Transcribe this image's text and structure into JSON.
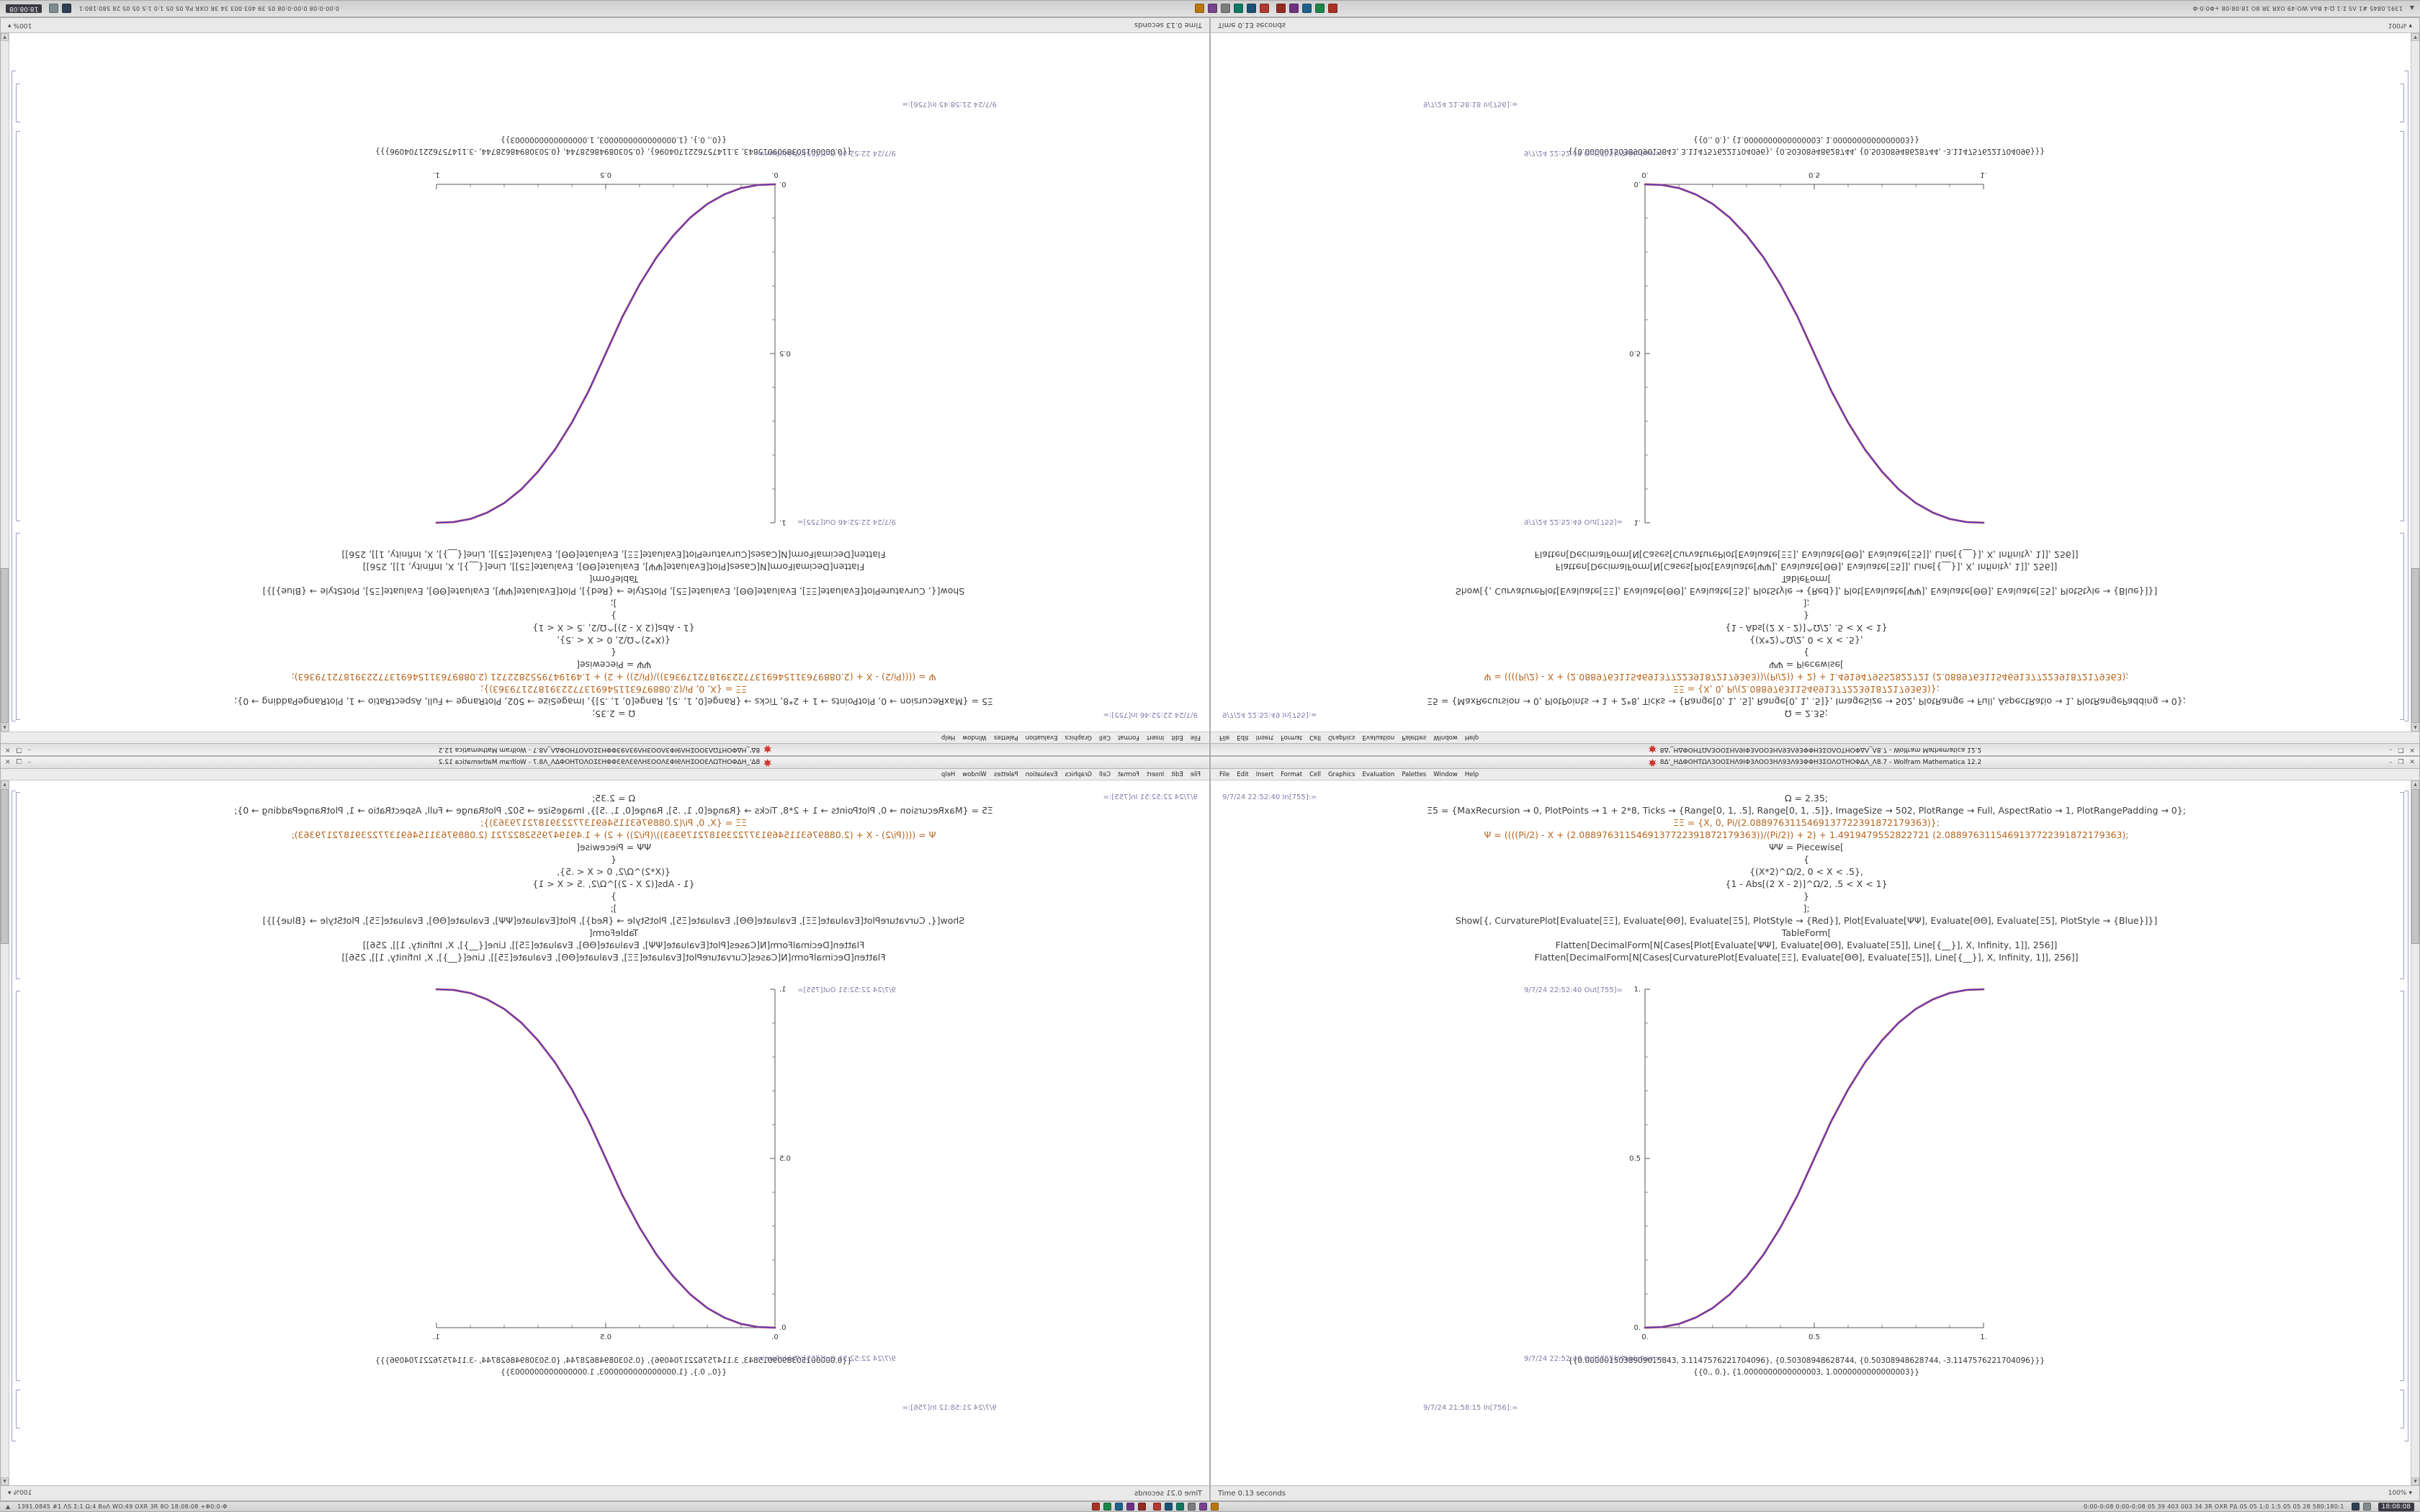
{
  "taskbar": {
    "autohide_arrow": "▲",
    "left_text": "1391.0845 #1 ΛS Σ:1 Ω:4 ΒοΛ WO:49 ΟΧR 3R 8Ο 18:08:08 +Φ0:0-Φ",
    "right_text": "0:00-0:08 0:00-0:08 05 39 403 003 34 3R ΟΧR ΡΔ 0S 05 1:0 1:5 05 05 28 580:180:1",
    "clock": "18:08:08",
    "app_icons_group1": [
      {
        "name": "terminal-icon",
        "color": "#a93226"
      },
      {
        "name": "files-icon",
        "color": "#1e8449"
      },
      {
        "name": "editor-icon",
        "color": "#1f618d"
      },
      {
        "name": "chat-icon",
        "color": "#6c3483"
      },
      {
        "name": "media-icon",
        "color": "#922b21"
      }
    ],
    "app_icons_group2": [
      {
        "name": "browser-icon",
        "color": "#b03a2e"
      },
      {
        "name": "mail-icon",
        "color": "#1a5276"
      },
      {
        "name": "calculator-icon",
        "color": "#117864"
      },
      {
        "name": "settings-icon",
        "color": "#7b7d7d"
      },
      {
        "name": "music-icon",
        "color": "#76448a"
      },
      {
        "name": "code-icon",
        "color": "#b9770e"
      }
    ],
    "right_icons": [
      {
        "name": "network-icon",
        "color": "#2e4053"
      },
      {
        "name": "volume-icon",
        "color": "#7f8c8d"
      }
    ]
  },
  "window_chrome": {
    "title": "8Δ'_ΗΔΦΟΗΤΩΛ3ΟΟΣΗΛ9ΙΦ3ΛΟΟ3ΗΛ93Λ93ΦΦΗ3ΣΟΛΟΤΗΟΦΔΛ_Λ8.7 - Wolfram Mathematica 12.2",
    "menu": [
      "File",
      "Edit",
      "Insert",
      "Format",
      "Cell",
      "Graphics",
      "Evaluation",
      "Palettes",
      "Window",
      "Help"
    ],
    "buttons": [
      "–",
      "❒",
      "✕"
    ],
    "zoom": "100%",
    "spikey_color": "#d0342c"
  },
  "notebook": {
    "in_label_prefix": "In[755]:=",
    "out_label_suffix": "Out[755]=",
    "tableform_suffix": "Out[755]//TableForm=",
    "next_label_suffix": "In[756]:=",
    "code_lines": [
      "Ω = 2.35;",
      "Ξ5 = {MaxRecursion → 0, PlotPoints → 1 + 2*8, Ticks → {Range[0, 1, .5], Range[0, 1, .5]}, ImageSize → 502, PlotRange → Full, AspectRatio → 1, PlotRangePadding → 0};",
      "ΞΞ = {X, 0, Pi/(2.0889763115469137722391872179363)};",
      "Ψ = ((((Pi/2) - X + (2.0889763115469137722391872179363))/(Pi/2)) + 2) + 1.4919479552822721 (2.0889763115469137722391872179363);",
      "ΨΨ = Piecewise[",
      "{",
      "{(X*2)^Ω/2, 0 < X < .5},",
      "{1 - Abs[(2 X - 2)]^Ω/2, .5 < X < 1}",
      "}",
      "];",
      "Show[{, CurvaturePlot[Evaluate[ΞΞ], Evaluate[ΘΘ], Evaluate[Ξ5], PlotStyle → {Red}],  Plot[Evaluate[ΨΨ], Evaluate[ΘΘ], Evaluate[Ξ5], PlotStyle → {Blue}]}]",
      "TableForm[",
      "Flatten[DecimalForm[N[Cases[Plot[Evaluate[ΨΨ], Evaluate[ΘΘ], Evaluate[Ξ5]], Line[{__}], X, Infinity, 1]], 256]]",
      "Flatten[DecimalForm[N[Cases[CurvaturePlot[Evaluate[ΞΞ], Evaluate[ΘΘ], Evaluate[Ξ5]], Line[{__}], X, Infinity, 1]], 256]]"
    ],
    "code_styles": [
      "plain",
      "plain",
      "num",
      "num",
      "plain",
      "plain",
      "plain",
      "plain",
      "plain",
      "plain",
      "plain",
      "plain",
      "plain",
      "plain"
    ],
    "tableform_lines": [
      "{{0.0000015038909015843, 3.1147576221704096}, {0.50308948628744, {0.50308948628744, -3.1147576221704096}}}",
      "{{0., 0.}, {1.0000000000000003, 1.0000000000000003}}"
    ]
  },
  "windows": [
    {
      "id": "top-left",
      "orientation": "rotate-180",
      "in_time": "9/7/24 22:52:46",
      "out_time": "9/7/24 22:52:46",
      "next_time": "9/7/24 21:58:45",
      "status": "Time 0.13 seconds"
    },
    {
      "id": "top-right",
      "orientation": "flip-vertical",
      "in_time": "9/7/24 22:52:49",
      "out_time": "9/7/24 22:52:49",
      "next_time": "9/7/24 21:58:18",
      "status": "Time 0.13 seconds"
    },
    {
      "id": "bottom-left",
      "orientation": "flip-horizontal",
      "in_time": "9/7/24 22:52:51",
      "out_time": "9/7/24 22:52:51",
      "next_time": "9/7/24 21:58:12",
      "status": "Time 0.21 seconds"
    },
    {
      "id": "bottom-right",
      "orientation": "none",
      "in_time": "9/7/24 22:52:40",
      "out_time": "9/7/24 22:52:40",
      "next_time": "9/7/24 21:58:15",
      "status": "Time 0.13 seconds"
    }
  ],
  "chart_data": {
    "type": "line",
    "title": "",
    "xlabel": "",
    "ylabel": "",
    "xlim": [
      0,
      1
    ],
    "ylim": [
      0,
      1
    ],
    "xticks": [
      0,
      0.5,
      1
    ],
    "yticks": [
      0,
      0.5,
      1
    ],
    "xtick_labels": [
      "0.",
      "0.5",
      "1."
    ],
    "ytick_labels": [
      "0.",
      "0.5",
      "1."
    ],
    "grid": false,
    "legend": "none",
    "aspect_ratio": 1,
    "x": [
      0,
      0.05,
      0.1,
      0.15,
      0.2,
      0.25,
      0.3,
      0.35,
      0.4,
      0.45,
      0.5,
      0.55,
      0.6,
      0.65,
      0.7,
      0.75,
      0.8,
      0.85,
      0.9,
      0.95,
      1
    ],
    "series": [
      {
        "name": "CurvaturePlot (Red)",
        "color": "#cc3355",
        "values": [
          0,
          0.002,
          0.011,
          0.03,
          0.058,
          0.098,
          0.151,
          0.216,
          0.296,
          0.39,
          0.5,
          0.61,
          0.704,
          0.784,
          0.849,
          0.902,
          0.942,
          0.97,
          0.989,
          0.998,
          1
        ]
      },
      {
        "name": "Plot (Blue)",
        "color": "#4848c8",
        "values": [
          0,
          0.002,
          0.011,
          0.03,
          0.058,
          0.098,
          0.151,
          0.216,
          0.296,
          0.39,
          0.5,
          0.61,
          0.704,
          0.784,
          0.849,
          0.902,
          0.942,
          0.97,
          0.989,
          0.998,
          1
        ]
      }
    ]
  }
}
